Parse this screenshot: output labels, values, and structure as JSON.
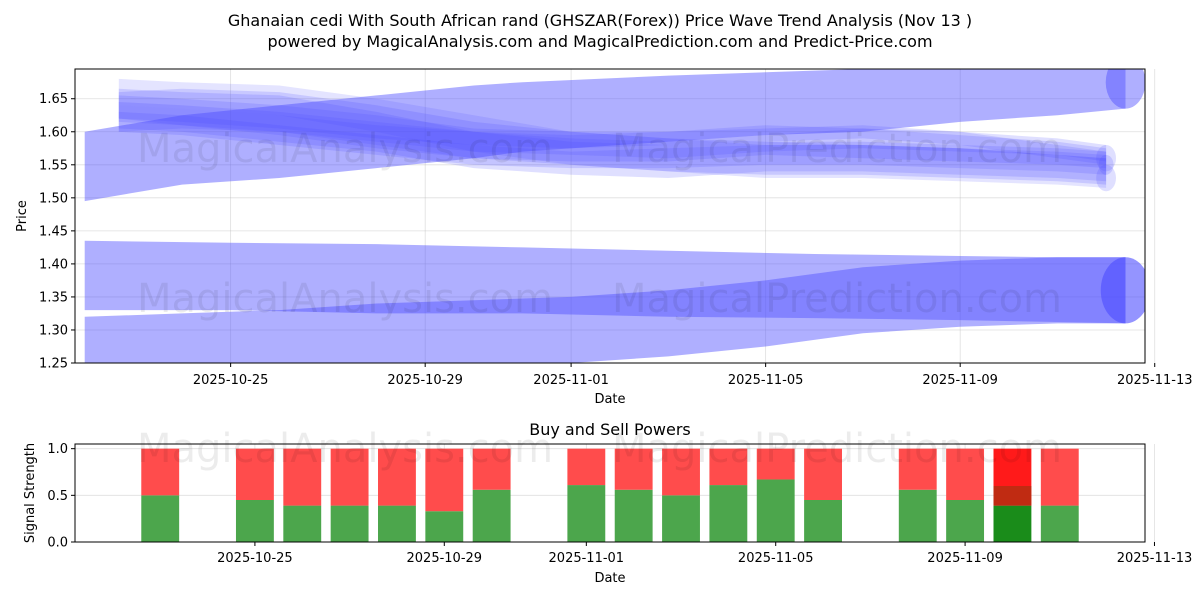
{
  "chart_data": [
    {
      "type": "area",
      "title_line1": "Ghanaian cedi With South African rand (GHSZAR(Forex)) Price Wave Trend Analysis (Nov 13 )",
      "title_line2": "powered by MagicalAnalysis.com and MagicalPrediction.com and Predict-Price.com",
      "xlabel": "Date",
      "ylabel": "Price",
      "ylim": [
        1.25,
        1.695
      ],
      "y_ticks": [
        1.25,
        1.3,
        1.35,
        1.4,
        1.45,
        1.5,
        1.55,
        1.6,
        1.65
      ],
      "y_tick_labels": [
        "1.25",
        "1.30",
        "1.35",
        "1.40",
        "1.45",
        "1.50",
        "1.55",
        "1.60",
        "1.65"
      ],
      "x_range_days": [
        -0.2,
        21.8
      ],
      "x_ticks_days": [
        3,
        7,
        10,
        14,
        18,
        22
      ],
      "x_tick_labels": [
        "2025-10-25",
        "2025-10-29",
        "2025-11-01",
        "2025-11-05",
        "2025-11-09",
        "2025-11-13"
      ],
      "watermark": [
        "MagicalAnalysis.com",
        "MagicalPrediction.com"
      ],
      "bands": [
        {
          "name": "upper-wave-rising",
          "x": [
            0,
            2,
            4,
            6,
            8,
            9,
            12,
            14,
            16,
            18,
            20,
            21.4
          ],
          "upper": [
            1.6,
            1.625,
            1.64,
            1.655,
            1.67,
            1.675,
            1.685,
            1.69,
            1.695,
            1.695,
            1.71,
            1.715
          ],
          "lower": [
            1.495,
            1.52,
            1.53,
            1.545,
            1.56,
            1.57,
            1.585,
            1.595,
            1.6,
            1.615,
            1.625,
            1.635
          ],
          "opacity": 0.45
        },
        {
          "name": "upper-wave-a",
          "x": [
            0.7,
            2,
            4,
            6,
            8,
            10,
            12,
            14,
            16,
            18,
            20,
            21
          ],
          "upper": [
            1.665,
            1.66,
            1.655,
            1.63,
            1.6,
            1.585,
            1.58,
            1.585,
            1.58,
            1.575,
            1.57,
            1.565
          ],
          "lower": [
            1.605,
            1.6,
            1.585,
            1.57,
            1.545,
            1.535,
            1.53,
            1.54,
            1.54,
            1.535,
            1.53,
            1.525
          ],
          "opacity": 0.18
        },
        {
          "name": "upper-wave-b",
          "x": [
            0.7,
            2,
            4,
            6,
            8,
            10,
            12,
            14,
            16,
            18,
            20,
            21
          ],
          "upper": [
            1.655,
            1.65,
            1.64,
            1.625,
            1.605,
            1.6,
            1.6,
            1.61,
            1.605,
            1.595,
            1.585,
            1.575
          ],
          "lower": [
            1.615,
            1.61,
            1.595,
            1.575,
            1.56,
            1.555,
            1.555,
            1.565,
            1.56,
            1.555,
            1.55,
            1.545
          ],
          "opacity": 0.18
        },
        {
          "name": "upper-wave-c",
          "x": [
            0.7,
            2,
            4,
            6,
            8,
            10,
            12,
            14,
            16,
            18,
            20,
            21
          ],
          "upper": [
            1.645,
            1.64,
            1.63,
            1.615,
            1.6,
            1.59,
            1.585,
            1.595,
            1.605,
            1.6,
            1.59,
            1.58
          ],
          "lower": [
            1.62,
            1.61,
            1.6,
            1.585,
            1.57,
            1.565,
            1.56,
            1.57,
            1.575,
            1.57,
            1.565,
            1.555
          ],
          "opacity": 0.18
        },
        {
          "name": "upper-wave-d",
          "x": [
            0.7,
            2,
            4,
            6,
            8,
            10,
            12,
            14,
            16,
            18,
            20,
            21
          ],
          "upper": [
            1.66,
            1.665,
            1.66,
            1.64,
            1.615,
            1.6,
            1.59,
            1.585,
            1.585,
            1.58,
            1.575,
            1.57
          ],
          "lower": [
            1.6,
            1.605,
            1.6,
            1.58,
            1.56,
            1.55,
            1.54,
            1.535,
            1.535,
            1.53,
            1.525,
            1.52
          ],
          "opacity": 0.18
        },
        {
          "name": "upper-wave-e",
          "x": [
            0.7,
            2,
            4,
            6,
            8,
            10,
            12,
            14,
            16,
            18,
            20,
            21
          ],
          "upper": [
            1.64,
            1.635,
            1.625,
            1.61,
            1.6,
            1.595,
            1.6,
            1.605,
            1.61,
            1.6,
            1.58,
            1.57
          ],
          "lower": [
            1.62,
            1.615,
            1.605,
            1.59,
            1.58,
            1.575,
            1.58,
            1.585,
            1.59,
            1.58,
            1.56,
            1.55
          ],
          "opacity": 0.18
        },
        {
          "name": "upper-wave-f",
          "x": [
            0.7,
            2,
            4,
            6,
            8,
            10,
            12,
            14,
            16,
            18,
            20,
            21
          ],
          "upper": [
            1.63,
            1.625,
            1.61,
            1.595,
            1.58,
            1.57,
            1.575,
            1.58,
            1.58,
            1.575,
            1.565,
            1.56
          ],
          "lower": [
            1.6,
            1.595,
            1.58,
            1.565,
            1.55,
            1.545,
            1.545,
            1.55,
            1.55,
            1.545,
            1.54,
            1.535
          ],
          "opacity": 0.18
        },
        {
          "name": "upper-wave-g",
          "x": [
            0.7,
            2,
            4,
            6,
            8,
            10,
            12,
            14,
            16,
            18,
            20,
            21
          ],
          "upper": [
            1.68,
            1.675,
            1.67,
            1.65,
            1.625,
            1.6,
            1.59,
            1.58,
            1.58,
            1.575,
            1.565,
            1.56
          ],
          "lower": [
            1.64,
            1.635,
            1.625,
            1.6,
            1.57,
            1.55,
            1.54,
            1.53,
            1.53,
            1.525,
            1.52,
            1.515
          ],
          "opacity": 0.15
        },
        {
          "name": "lower-wave-flat",
          "x": [
            0,
            3,
            6,
            9,
            12,
            15,
            18,
            20,
            21.4
          ],
          "upper": [
            1.435,
            1.432,
            1.43,
            1.425,
            1.42,
            1.415,
            1.412,
            1.41,
            1.41
          ],
          "lower": [
            1.33,
            1.33,
            1.325,
            1.325,
            1.32,
            1.318,
            1.315,
            1.312,
            1.31
          ],
          "opacity": 0.45
        },
        {
          "name": "lower-wave-rising",
          "x": [
            0,
            2,
            4,
            6,
            8,
            10,
            12,
            14,
            16,
            18,
            20,
            21.4
          ],
          "upper": [
            1.32,
            1.325,
            1.33,
            1.34,
            1.345,
            1.35,
            1.36,
            1.375,
            1.395,
            1.405,
            1.41,
            1.41
          ],
          "lower": [
            1.25,
            1.25,
            1.25,
            1.25,
            1.25,
            1.25,
            1.26,
            1.275,
            1.295,
            1.305,
            1.31,
            1.31
          ],
          "opacity": 0.45
        }
      ],
      "end_caps": [
        {
          "name": "upper-cap-large",
          "x": 21.4,
          "y": 1.675,
          "r_price": 0.04,
          "opacity": 0.45
        },
        {
          "name": "upper-cap-1",
          "x": 21.0,
          "y": 1.56,
          "r_price": 0.02,
          "opacity": 0.18
        },
        {
          "name": "upper-cap-2",
          "x": 21.0,
          "y": 1.53,
          "r_price": 0.02,
          "opacity": 0.18
        },
        {
          "name": "upper-cap-3",
          "x": 21.0,
          "y": 1.55,
          "r_price": 0.015,
          "opacity": 0.18
        },
        {
          "name": "lower-cap",
          "x": 21.4,
          "y": 1.36,
          "r_price": 0.05,
          "opacity": 0.6
        }
      ]
    },
    {
      "type": "bar",
      "title": "Buy and Sell Powers",
      "xlabel": "Date",
      "ylabel": "Signal Strength",
      "ylim": [
        0,
        1.05
      ],
      "y_ticks": [
        0,
        0.5,
        1.0
      ],
      "y_tick_labels": [
        "0.0",
        "0.5",
        "1.0"
      ],
      "x_range_days": [
        -0.8,
        21.8
      ],
      "x_ticks_days": [
        3,
        7,
        10,
        14,
        18,
        22
      ],
      "x_tick_labels": [
        "2025-10-25",
        "2025-10-29",
        "2025-11-01",
        "2025-11-05",
        "2025-11-09",
        "2025-11-13"
      ],
      "buy_color": "#4ca64c",
      "sell_color": "#ff4c4c",
      "buy_color_highlight": "#1a8c1a",
      "sell_color_highlight": "#ff1a1a",
      "bars": [
        {
          "day": 1,
          "buy": 0.5,
          "sell": 0.5
        },
        {
          "day": 3,
          "buy": 0.45,
          "sell": 0.55
        },
        {
          "day": 4,
          "buy": 0.39,
          "sell": 0.61
        },
        {
          "day": 5,
          "buy": 0.39,
          "sell": 0.61
        },
        {
          "day": 6,
          "buy": 0.39,
          "sell": 0.61
        },
        {
          "day": 7,
          "buy": 0.33,
          "sell": 0.67
        },
        {
          "day": 8,
          "buy": 0.56,
          "sell": 0.44
        },
        {
          "day": 10,
          "buy": 0.61,
          "sell": 0.39
        },
        {
          "day": 11,
          "buy": 0.56,
          "sell": 0.44
        },
        {
          "day": 12,
          "buy": 0.5,
          "sell": 0.5
        },
        {
          "day": 13,
          "buy": 0.61,
          "sell": 0.39
        },
        {
          "day": 14,
          "buy": 0.67,
          "sell": 0.33
        },
        {
          "day": 15,
          "buy": 0.45,
          "sell": 0.55
        },
        {
          "day": 17,
          "buy": 0.56,
          "sell": 0.44
        },
        {
          "day": 18,
          "buy": 0.45,
          "sell": 0.55
        },
        {
          "day": 19,
          "buy": 0.39,
          "sell": 0.61,
          "highlight": true,
          "mid_band": 0.6
        },
        {
          "day": 20,
          "buy": 0.39,
          "sell": 0.61
        }
      ]
    }
  ]
}
